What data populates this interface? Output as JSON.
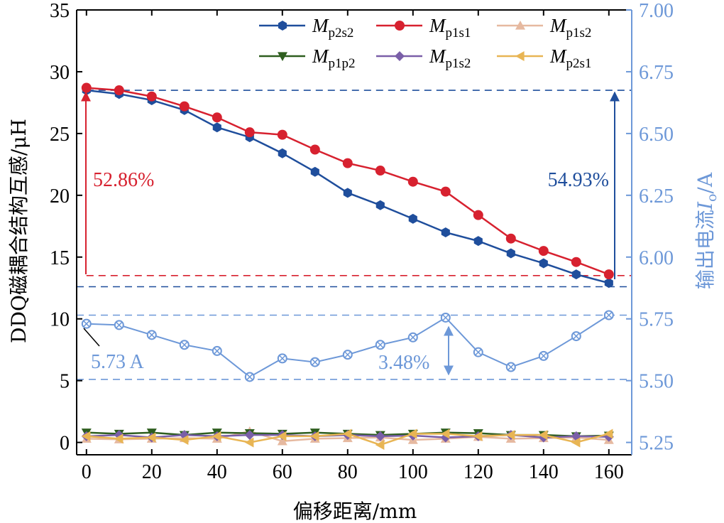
{
  "chart_data": {
    "type": "line",
    "x": [
      0,
      10,
      20,
      30,
      40,
      50,
      60,
      70,
      80,
      90,
      100,
      110,
      120,
      130,
      140,
      150,
      160
    ],
    "xlabel": "偏移距离/mm",
    "ylabel": "DDQ磁耦合结构互感/μH",
    "ylabel2_prefix": "输出电流",
    "ylabel2_var": "I",
    "ylabel2_sub": "o",
    "ylabel2_suffix": "/A",
    "xlim": [
      -3,
      167
    ],
    "ylim": [
      -1,
      35
    ],
    "y2lim": [
      5.2,
      7.0
    ],
    "xticks": [
      0,
      20,
      40,
      60,
      80,
      100,
      120,
      140,
      160
    ],
    "yticks": [
      0,
      5,
      10,
      15,
      20,
      25,
      30,
      35
    ],
    "y2ticks": [
      "5.25",
      "5.50",
      "5.75",
      "6.00",
      "6.25",
      "6.50",
      "6.75",
      "7.00"
    ],
    "y2tick_values": [
      5.25,
      5.5,
      5.75,
      6.0,
      6.25,
      6.5,
      6.75,
      7.0
    ],
    "series": [
      {
        "name": "M_p2s2",
        "var": "M",
        "sub": "p2s2",
        "color": "#1f4e9c",
        "marker": "hexagon",
        "axis": "left",
        "values": [
          28.5,
          28.2,
          27.7,
          26.9,
          25.5,
          24.7,
          23.4,
          21.9,
          20.2,
          19.2,
          18.1,
          17.0,
          16.3,
          15.3,
          14.5,
          13.6,
          12.9
        ]
      },
      {
        "name": "M_p1s1",
        "var": "M",
        "sub": "p1s1",
        "color": "#d7212f",
        "marker": "circle",
        "axis": "left",
        "values": [
          28.7,
          28.5,
          28.0,
          27.2,
          26.3,
          25.1,
          24.9,
          23.7,
          22.6,
          22.0,
          21.1,
          20.3,
          18.4,
          16.5,
          15.5,
          14.6,
          13.6
        ]
      },
      {
        "name": "M_p1s2",
        "var": "M",
        "sub": "p1s2",
        "color": "#e6b9a0",
        "marker": "triangle-up",
        "axis": "left",
        "values": [
          0.3,
          0.25,
          0.3,
          0.35,
          0.3,
          0.9,
          0.1,
          0.3,
          0.35,
          0.4,
          0.2,
          0.3,
          0.45,
          0.3,
          0.35,
          0.4,
          0.2
        ]
      },
      {
        "name": "M_p1p2",
        "var": "M",
        "sub": "p1p2",
        "color": "#2e5e1f",
        "marker": "triangle-down",
        "axis": "left",
        "values": [
          0.8,
          0.7,
          0.8,
          0.6,
          0.8,
          0.75,
          0.7,
          0.8,
          0.7,
          0.6,
          0.7,
          0.8,
          0.75,
          0.6,
          0.6,
          0.5,
          0.55
        ]
      },
      {
        "name": "M_p1s2",
        "var": "M",
        "sub": "p1s2",
        "color": "#7a5fa8",
        "marker": "diamond",
        "axis": "left",
        "values": [
          0.5,
          0.6,
          0.4,
          0.6,
          0.5,
          0.6,
          0.6,
          0.5,
          0.6,
          0.5,
          0.55,
          0.4,
          0.5,
          0.6,
          0.4,
          0.5,
          0.45
        ]
      },
      {
        "name": "M_p2s1",
        "var": "M",
        "sub": "p2s1",
        "color": "#e8b554",
        "marker": "triangle-left",
        "axis": "left",
        "values": [
          0.5,
          0.3,
          0.4,
          0.2,
          0.5,
          0.0,
          0.5,
          0.5,
          0.7,
          -0.2,
          0.7,
          0.7,
          0.5,
          0.6,
          0.6,
          0.0,
          0.7
        ]
      },
      {
        "name": "I_o",
        "color": "#6d98d8",
        "marker": "circle-x",
        "axis": "right",
        "legend": false,
        "values": [
          5.73,
          5.725,
          5.685,
          5.645,
          5.62,
          5.515,
          5.59,
          5.575,
          5.605,
          5.645,
          5.675,
          5.755,
          5.615,
          5.555,
          5.6,
          5.68,
          5.765
        ]
      }
    ],
    "reference_lines": [
      {
        "axis": "left",
        "value": 13.5,
        "x_from": 0,
        "color": "#d7212f"
      },
      {
        "axis": "left",
        "value": 12.6,
        "x_from": -3,
        "color": "#1f4e9c"
      },
      {
        "axis": "left",
        "value": 28.5,
        "x_from": 0,
        "color": "#1f4e9c"
      },
      {
        "axis": "right",
        "value": 5.765,
        "x_from": -3,
        "color": "#6d98d8"
      },
      {
        "axis": "right",
        "value": 5.505,
        "x_from": -3,
        "color": "#6d98d8"
      }
    ],
    "annotations": {
      "red_pct": "52.86%",
      "blue_pct": "54.93%",
      "current_label": "5.73 A",
      "current_pct": "3.48%"
    },
    "legend_position": "top-right",
    "grid": false
  }
}
